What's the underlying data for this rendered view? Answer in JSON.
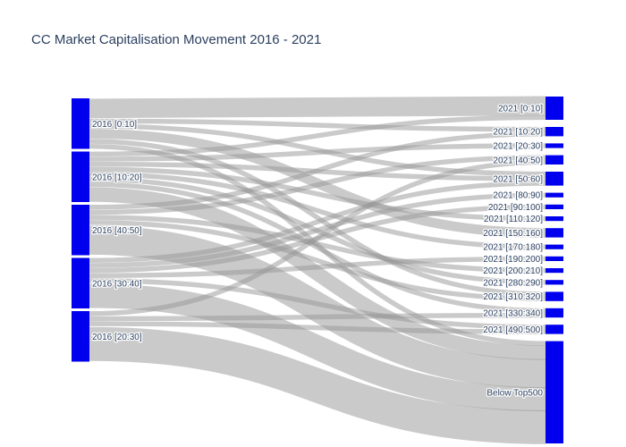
{
  "chart_data": {
    "type": "sankey",
    "title": "CC Market Capitalisation Movement 2016 - 2021",
    "node_color": "#0000ee",
    "link_color": "rgba(150,150,150,0.5)",
    "source_nodes": [
      "2016 [0:10]",
      "2016 [10:20]",
      "2016 [40:50]",
      "2016 [30:40]",
      "2016 [20:30]"
    ],
    "target_nodes": [
      "2021 [0:10]",
      "2021 [10:20]",
      "2021 [20:30]",
      "2021 [40:50]",
      "2021 [50:60]",
      "2021 [80:90]",
      "2021 [90:100]",
      "2021 [110:120]",
      "2021 [150:160]",
      "2021 [170:180]",
      "2021 [190:200]",
      "2021 [200:210]",
      "2021 [280:290]",
      "2021 [310:320]",
      "2021 [330:340]",
      "2021 [490:500]",
      "Below Top500"
    ],
    "links": [
      {
        "source": "2016 [0:10]",
        "target": "2021 [0:10]",
        "value": 4
      },
      {
        "source": "2016 [0:10]",
        "target": "2021 [10:20]",
        "value": 1
      },
      {
        "source": "2016 [0:10]",
        "target": "2021 [50:60]",
        "value": 1
      },
      {
        "source": "2016 [0:10]",
        "target": "2021 [150:160]",
        "value": 2
      },
      {
        "source": "2016 [0:10]",
        "target": "2021 [310:320]",
        "value": 1
      },
      {
        "source": "2016 [0:10]",
        "target": "Below Top500",
        "value": 1
      },
      {
        "source": "2016 [10:20]",
        "target": "2021 [0:10]",
        "value": 1
      },
      {
        "source": "2016 [10:20]",
        "target": "2021 [20:30]",
        "value": 1
      },
      {
        "source": "2016 [10:20]",
        "target": "2021 [50:60]",
        "value": 1
      },
      {
        "source": "2016 [10:20]",
        "target": "2021 [110:120]",
        "value": 1
      },
      {
        "source": "2016 [10:20]",
        "target": "2021 [170:180]",
        "value": 1
      },
      {
        "source": "2016 [10:20]",
        "target": "2021 [280:290]",
        "value": 1
      },
      {
        "source": "2016 [10:20]",
        "target": "2021 [330:340]",
        "value": 1
      },
      {
        "source": "2016 [10:20]",
        "target": "Below Top500",
        "value": 3
      },
      {
        "source": "2016 [40:50]",
        "target": "2021 [10:20]",
        "value": 1
      },
      {
        "source": "2016 [40:50]",
        "target": "2021 [40:50]",
        "value": 1
      },
      {
        "source": "2016 [40:50]",
        "target": "2021 [200:210]",
        "value": 1
      },
      {
        "source": "2016 [40:50]",
        "target": "2021 [310:320]",
        "value": 1
      },
      {
        "source": "2016 [40:50]",
        "target": "Below Top500",
        "value": 6
      },
      {
        "source": "2016 [30:40]",
        "target": "2021 [50:60]",
        "value": 1
      },
      {
        "source": "2016 [30:40]",
        "target": "2021 [80:90]",
        "value": 1
      },
      {
        "source": "2016 [30:40]",
        "target": "2021 [90:100]",
        "value": 1
      },
      {
        "source": "2016 [30:40]",
        "target": "2021 [190:200]",
        "value": 1
      },
      {
        "source": "2016 [30:40]",
        "target": "2021 [490:500]",
        "value": 1
      },
      {
        "source": "2016 [30:40]",
        "target": "Below Top500",
        "value": 5
      },
      {
        "source": "2016 [20:30]",
        "target": "2021 [40:50]",
        "value": 1
      },
      {
        "source": "2016 [20:30]",
        "target": "2021 [330:340]",
        "value": 1
      },
      {
        "source": "2016 [20:30]",
        "target": "2021 [490:500]",
        "value": 1
      },
      {
        "source": "2016 [20:30]",
        "target": "Below Top500",
        "value": 7
      }
    ]
  }
}
